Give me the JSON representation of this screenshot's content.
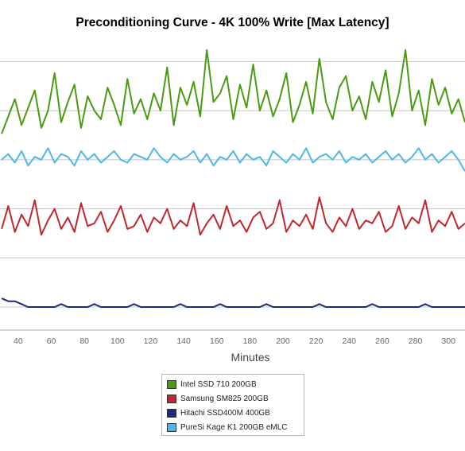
{
  "chart_data": {
    "type": "line",
    "title": "Preconditioning Curve - 4K 100% Write [Max Latency]",
    "xlabel": "Minutes",
    "ylabel": "",
    "xlim": [
      29,
      310
    ],
    "ylim": [
      0,
      100
    ],
    "x_ticks": [
      40,
      60,
      80,
      100,
      120,
      140,
      160,
      180,
      200,
      220,
      240,
      260,
      280,
      300
    ],
    "y_gridlines": [
      8,
      25,
      42,
      59,
      76,
      93
    ],
    "grid": true,
    "legend_position": "bottom",
    "series": [
      {
        "name": "Intel SSD 710 200GB",
        "color": "#4a9a12",
        "x": [
          30,
          34,
          38,
          42,
          46,
          50,
          54,
          58,
          62,
          66,
          70,
          74,
          78,
          82,
          86,
          90,
          94,
          98,
          102,
          106,
          110,
          114,
          118,
          122,
          126,
          130,
          134,
          138,
          142,
          146,
          150,
          154,
          158,
          162,
          166,
          170,
          174,
          178,
          182,
          186,
          190,
          194,
          198,
          202,
          206,
          210,
          214,
          218,
          222,
          226,
          230,
          234,
          238,
          242,
          246,
          250,
          254,
          258,
          262,
          266,
          270,
          274,
          278,
          282,
          286,
          290,
          294,
          298,
          302,
          306,
          310
        ],
        "values": [
          68,
          74,
          80,
          71,
          77,
          83,
          70,
          76,
          89,
          72,
          79,
          85,
          70,
          81,
          76,
          73,
          84,
          78,
          71,
          87,
          75,
          80,
          73,
          82,
          76,
          91,
          71,
          84,
          78,
          86,
          74,
          97,
          79,
          82,
          88,
          73,
          85,
          77,
          92,
          76,
          83,
          74,
          80,
          89,
          72,
          78,
          86,
          75,
          94,
          79,
          73,
          84,
          88,
          76,
          81,
          73,
          86,
          79,
          90,
          74,
          82,
          97,
          76,
          83,
          71,
          87,
          78,
          84,
          75,
          80,
          72
        ]
      },
      {
        "name": "Samsung SM825 200GB",
        "color": "#c0272d",
        "x": [
          30,
          34,
          38,
          42,
          46,
          50,
          54,
          58,
          62,
          66,
          70,
          74,
          78,
          82,
          86,
          90,
          94,
          98,
          102,
          106,
          110,
          114,
          118,
          122,
          126,
          130,
          134,
          138,
          142,
          146,
          150,
          154,
          158,
          162,
          166,
          170,
          174,
          178,
          182,
          186,
          190,
          194,
          198,
          202,
          206,
          210,
          214,
          218,
          222,
          226,
          230,
          234,
          238,
          242,
          246,
          250,
          254,
          258,
          262,
          266,
          270,
          274,
          278,
          282,
          286,
          290,
          294,
          298,
          302,
          306,
          310
        ],
        "values": [
          35,
          43,
          34,
          40,
          36,
          45,
          33,
          38,
          42,
          35,
          39,
          34,
          44,
          36,
          37,
          41,
          34,
          38,
          43,
          35,
          36,
          40,
          34,
          39,
          37,
          42,
          35,
          38,
          36,
          44,
          33,
          37,
          40,
          35,
          43,
          36,
          38,
          34,
          39,
          41,
          35,
          37,
          45,
          34,
          38,
          36,
          40,
          35,
          46,
          37,
          34,
          39,
          36,
          42,
          35,
          38,
          37,
          41,
          34,
          36,
          43,
          35,
          39,
          37,
          45,
          34,
          38,
          36,
          41,
          35,
          37
        ]
      },
      {
        "name": "Hitachi SSD400M 400GB",
        "color": "#1a2a7a",
        "x": [
          30,
          34,
          38,
          42,
          46,
          50,
          54,
          58,
          62,
          66,
          70,
          74,
          78,
          82,
          86,
          90,
          94,
          98,
          102,
          106,
          110,
          114,
          118,
          122,
          126,
          130,
          134,
          138,
          142,
          146,
          150,
          154,
          158,
          162,
          166,
          170,
          174,
          178,
          182,
          186,
          190,
          194,
          198,
          202,
          206,
          210,
          214,
          218,
          222,
          226,
          230,
          234,
          238,
          242,
          246,
          250,
          254,
          258,
          262,
          266,
          270,
          274,
          278,
          282,
          286,
          290,
          294,
          298,
          302,
          306,
          310
        ],
        "values": [
          11,
          10,
          10,
          9,
          8,
          8,
          8,
          8,
          8,
          9,
          8,
          8,
          8,
          8,
          9,
          8,
          8,
          8,
          8,
          8,
          9,
          8,
          8,
          8,
          8,
          8,
          8,
          9,
          8,
          8,
          8,
          8,
          8,
          9,
          8,
          8,
          8,
          8,
          8,
          8,
          9,
          8,
          8,
          8,
          8,
          8,
          8,
          8,
          9,
          8,
          8,
          8,
          8,
          8,
          8,
          8,
          9,
          8,
          8,
          8,
          8,
          8,
          8,
          8,
          9,
          8,
          8,
          8,
          8,
          8,
          8
        ]
      },
      {
        "name": "PureSi Kage K1 200GB eMLC",
        "color": "#4db8e8",
        "x": [
          30,
          34,
          38,
          42,
          46,
          50,
          54,
          58,
          62,
          66,
          70,
          74,
          78,
          82,
          86,
          90,
          94,
          98,
          102,
          106,
          110,
          114,
          118,
          122,
          126,
          130,
          134,
          138,
          142,
          146,
          150,
          154,
          158,
          162,
          166,
          170,
          174,
          178,
          182,
          186,
          190,
          194,
          198,
          202,
          206,
          210,
          214,
          218,
          222,
          226,
          230,
          234,
          238,
          242,
          246,
          250,
          254,
          258,
          262,
          266,
          270,
          274,
          278,
          282,
          286,
          290,
          294,
          298,
          302,
          306,
          310
        ],
        "values": [
          59,
          61,
          58,
          62,
          57,
          60,
          59,
          63,
          58,
          61,
          60,
          57,
          62,
          59,
          61,
          58,
          60,
          62,
          59,
          58,
          61,
          60,
          59,
          63,
          60,
          58,
          61,
          59,
          60,
          62,
          58,
          61,
          57,
          60,
          59,
          62,
          58,
          61,
          59,
          60,
          57,
          62,
          60,
          58,
          61,
          59,
          63,
          58,
          60,
          61,
          59,
          62,
          58,
          60,
          59,
          61,
          58,
          60,
          62,
          59,
          61,
          58,
          60,
          63,
          59,
          61,
          58,
          60,
          62,
          59,
          55
        ]
      }
    ]
  }
}
